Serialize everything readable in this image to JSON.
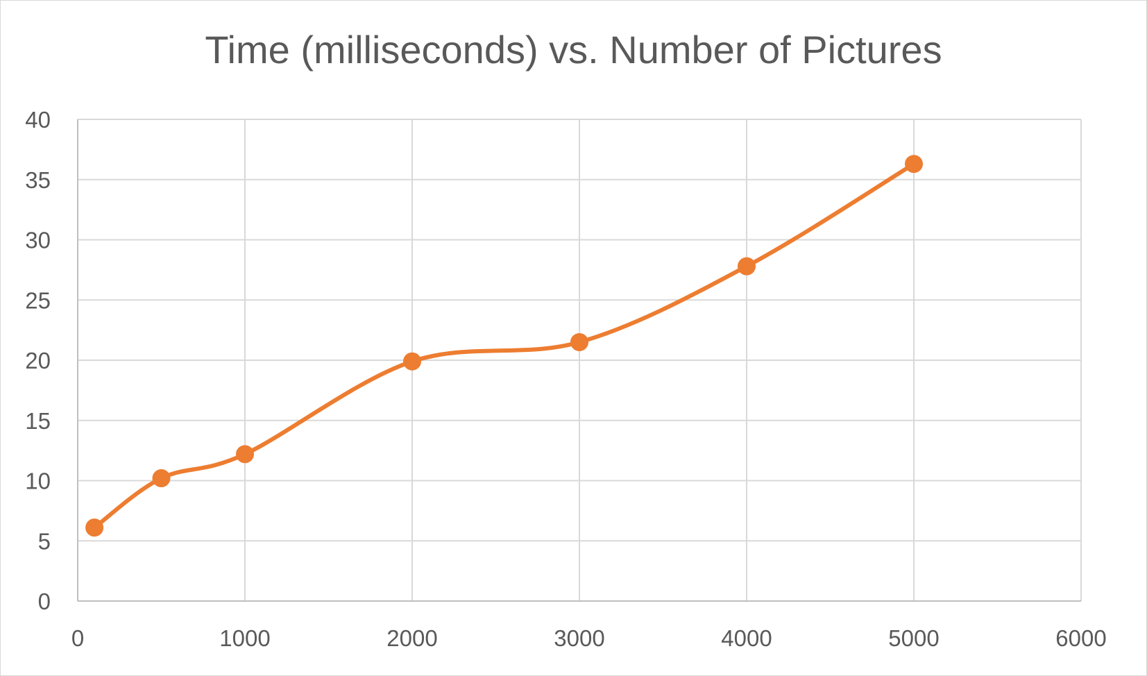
{
  "chart_data": {
    "type": "line",
    "title": "Time (milliseconds) vs. Number of Pictures",
    "xlabel": "",
    "ylabel": "",
    "xlim": [
      0,
      6000
    ],
    "ylim": [
      0,
      40
    ],
    "x_ticks": [
      0,
      1000,
      2000,
      3000,
      4000,
      5000,
      6000
    ],
    "y_ticks": [
      0,
      5,
      10,
      15,
      20,
      25,
      30,
      35,
      40
    ],
    "grid": true,
    "smoothed": true,
    "series": [
      {
        "color": "#ED7D31",
        "points": [
          {
            "x": 100,
            "y": 6.1
          },
          {
            "x": 500,
            "y": 10.2
          },
          {
            "x": 1000,
            "y": 12.2
          },
          {
            "x": 2000,
            "y": 19.9
          },
          {
            "x": 3000,
            "y": 21.5
          },
          {
            "x": 4000,
            "y": 27.8
          },
          {
            "x": 5000,
            "y": 36.3
          }
        ]
      }
    ]
  }
}
